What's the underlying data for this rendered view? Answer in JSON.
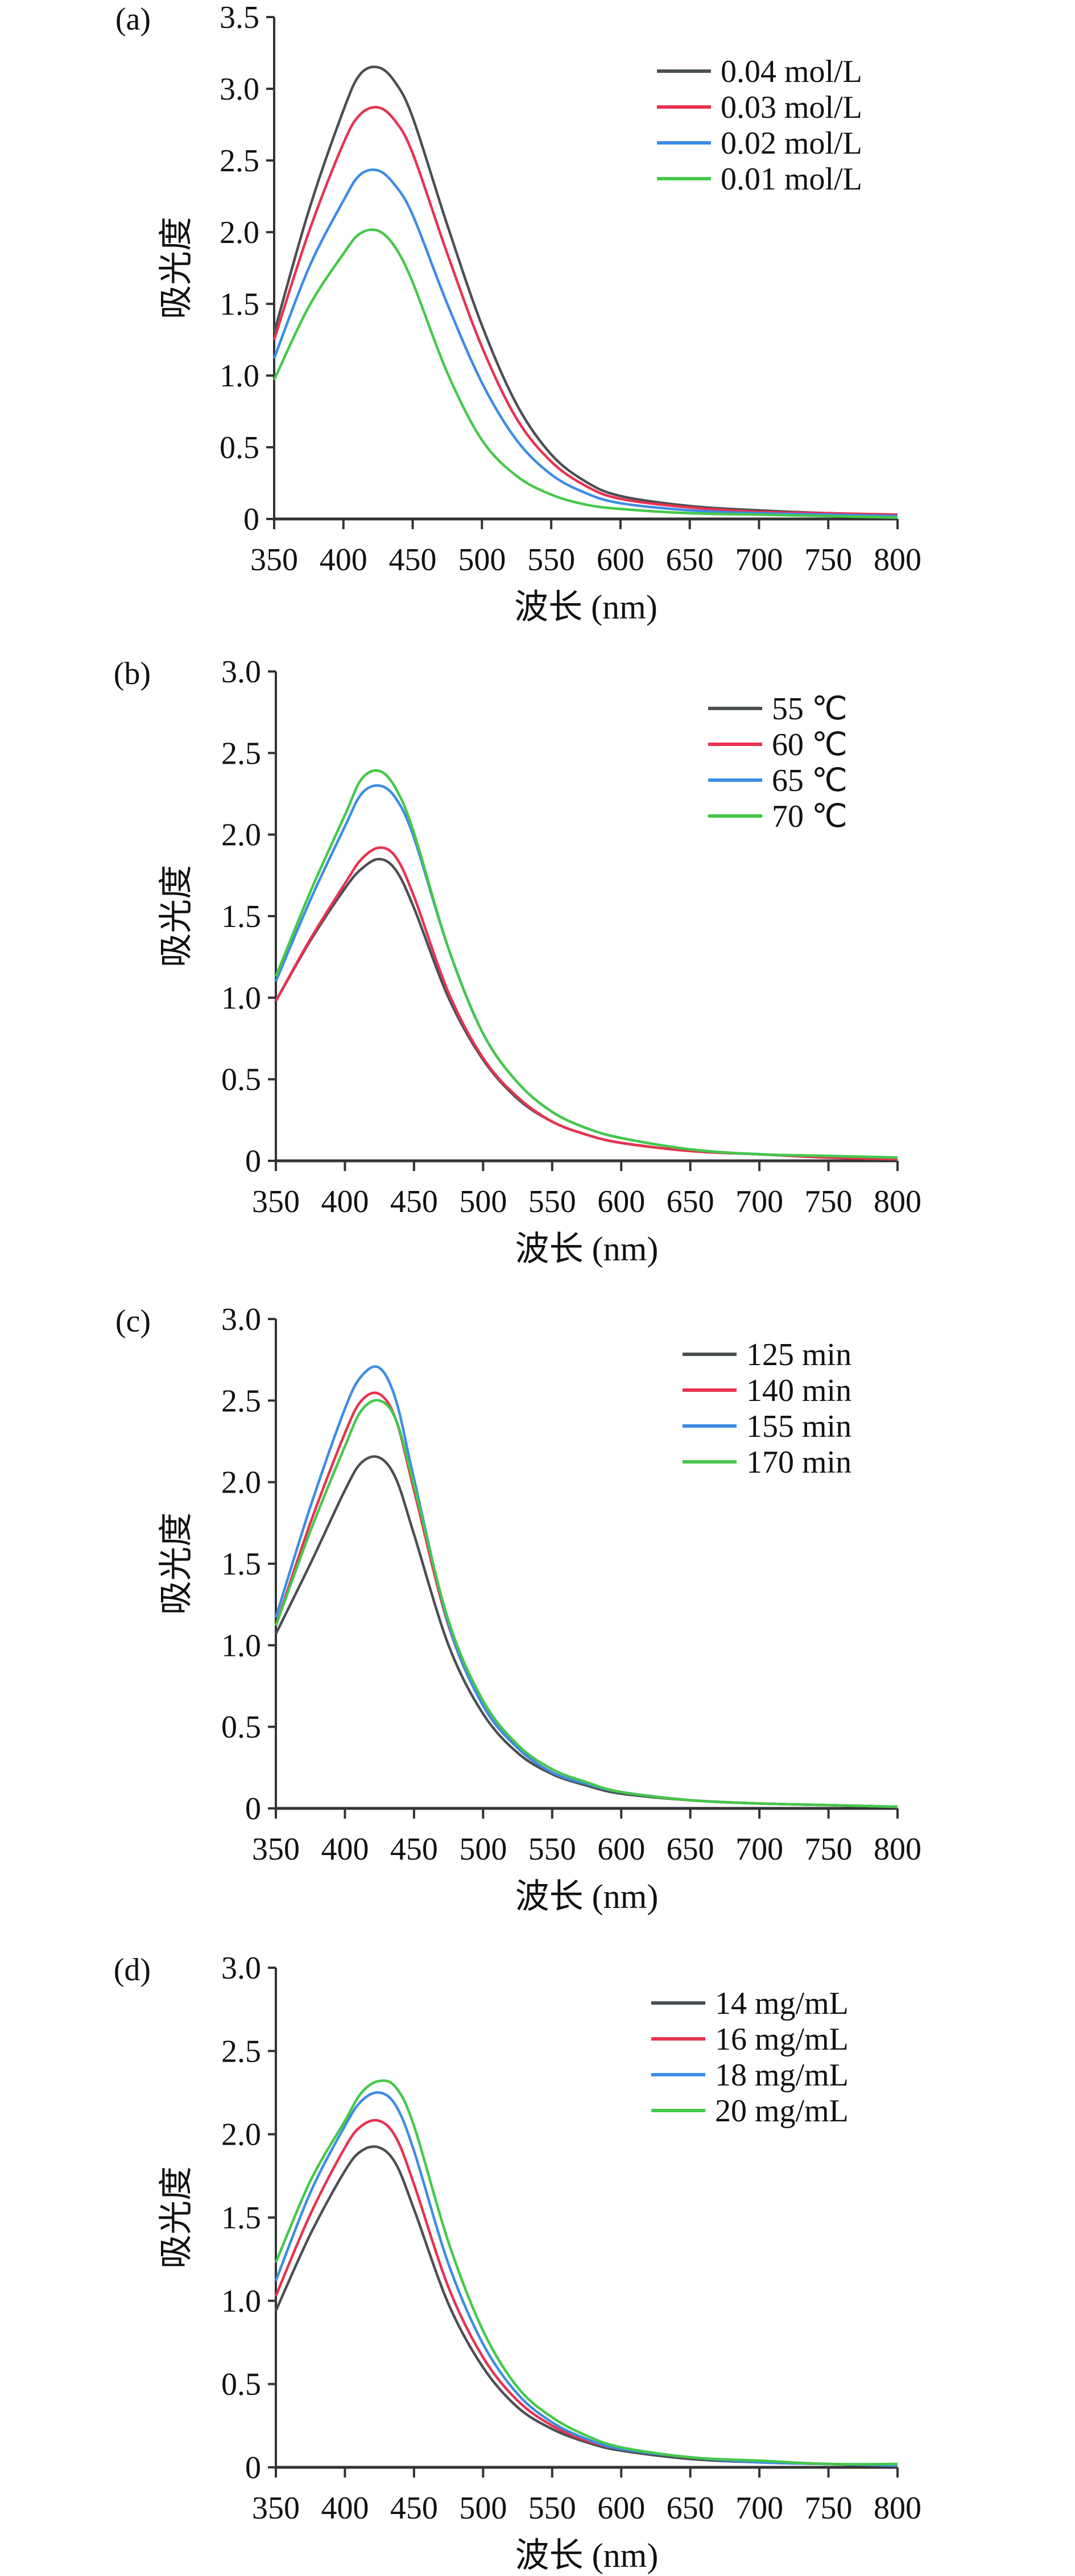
{
  "chart_data": [
    {
      "type": "line",
      "panel_label": "(a)",
      "xlabel": "波长 (nm)",
      "ylabel": "吸光度",
      "xlim": [
        350,
        800
      ],
      "ylim": [
        0,
        3.5
      ],
      "x_ticks": [
        "350",
        "400",
        "450",
        "500",
        "550",
        "600",
        "650",
        "700",
        "750",
        "800"
      ],
      "y_ticks": [
        "0",
        "0.5",
        "1.0",
        "1.5",
        "2.0",
        "2.5",
        "3.0",
        "3.5"
      ],
      "legend_position": "top-right",
      "grid": false,
      "x": [
        350,
        375,
        400,
        412,
        425,
        437,
        450,
        475,
        500,
        525,
        550,
        575,
        600,
        650,
        700,
        750,
        800
      ],
      "series": [
        {
          "name": "0.04 mol/L",
          "color": "#4a4f52",
          "values": [
            1.3,
            2.15,
            2.85,
            3.1,
            3.15,
            3.05,
            2.8,
            2.05,
            1.35,
            0.8,
            0.45,
            0.26,
            0.16,
            0.09,
            0.06,
            0.04,
            0.03
          ]
        },
        {
          "name": "0.03 mol/L",
          "color": "#e8324f",
          "values": [
            1.25,
            2.0,
            2.62,
            2.82,
            2.87,
            2.78,
            2.55,
            1.85,
            1.2,
            0.7,
            0.4,
            0.23,
            0.14,
            0.08,
            0.05,
            0.04,
            0.03
          ]
        },
        {
          "name": "0.02 mol/L",
          "color": "#3d8ce6",
          "values": [
            1.12,
            1.75,
            2.22,
            2.4,
            2.43,
            2.33,
            2.12,
            1.5,
            0.95,
            0.55,
            0.31,
            0.18,
            0.11,
            0.06,
            0.04,
            0.03,
            0.02
          ]
        },
        {
          "name": "0.01 mol/L",
          "color": "#45c84a",
          "values": [
            0.97,
            1.48,
            1.85,
            1.99,
            2.01,
            1.9,
            1.65,
            1.02,
            0.55,
            0.3,
            0.17,
            0.1,
            0.07,
            0.04,
            0.03,
            0.02,
            0.01
          ]
        }
      ]
    },
    {
      "type": "line",
      "panel_label": "(b)",
      "xlabel": "波长 (nm)",
      "ylabel": "吸光度",
      "xlim": [
        350,
        800
      ],
      "ylim": [
        0,
        3.0
      ],
      "x_ticks": [
        "350",
        "400",
        "450",
        "500",
        "550",
        "600",
        "650",
        "700",
        "750",
        "800"
      ],
      "y_ticks": [
        "0",
        "0.5",
        "1.0",
        "1.5",
        "2.0",
        "2.5",
        "3.0"
      ],
      "legend_position": "top-right",
      "grid": false,
      "x": [
        350,
        375,
        400,
        412,
        425,
        437,
        450,
        475,
        500,
        525,
        550,
        575,
        600,
        650,
        700,
        750,
        800
      ],
      "series": [
        {
          "name": "55 ℃",
          "color": "#4a4f52",
          "values": [
            0.98,
            1.35,
            1.67,
            1.79,
            1.85,
            1.78,
            1.55,
            1.0,
            0.62,
            0.38,
            0.24,
            0.16,
            0.11,
            0.06,
            0.04,
            0.02,
            0.01
          ]
        },
        {
          "name": "60 ℃",
          "color": "#e8324f",
          "values": [
            0.98,
            1.36,
            1.7,
            1.85,
            1.92,
            1.86,
            1.62,
            1.03,
            0.63,
            0.39,
            0.24,
            0.16,
            0.11,
            0.06,
            0.04,
            0.02,
            0.01
          ]
        },
        {
          "name": "65 ℃",
          "color": "#3d8ce6",
          "values": [
            1.1,
            1.6,
            2.05,
            2.25,
            2.3,
            2.22,
            1.98,
            1.3,
            0.78,
            0.48,
            0.3,
            0.2,
            0.14,
            0.07,
            0.04,
            0.03,
            0.02
          ]
        },
        {
          "name": "70 ℃",
          "color": "#45c84a",
          "values": [
            1.13,
            1.65,
            2.12,
            2.34,
            2.39,
            2.28,
            2.01,
            1.3,
            0.78,
            0.48,
            0.3,
            0.2,
            0.14,
            0.07,
            0.04,
            0.03,
            0.02
          ]
        }
      ]
    },
    {
      "type": "line",
      "panel_label": "(c)",
      "xlabel": "波长 (nm)",
      "ylabel": "吸光度",
      "xlim": [
        350,
        800
      ],
      "ylim": [
        0,
        3.0
      ],
      "x_ticks": [
        "350",
        "400",
        "450",
        "500",
        "550",
        "600",
        "650",
        "700",
        "750",
        "800"
      ],
      "y_ticks": [
        "0",
        "0.5",
        "1.0",
        "1.5",
        "2.0",
        "2.5",
        "3.0"
      ],
      "legend_position": "top-right",
      "grid": false,
      "x": [
        350,
        375,
        400,
        412,
        425,
        437,
        450,
        475,
        500,
        525,
        550,
        575,
        600,
        650,
        700,
        750,
        800
      ],
      "series": [
        {
          "name": "125 min",
          "color": "#4a4f52",
          "values": [
            1.07,
            1.5,
            1.95,
            2.12,
            2.15,
            2.02,
            1.68,
            1.0,
            0.58,
            0.34,
            0.21,
            0.14,
            0.09,
            0.05,
            0.03,
            0.02,
            0.01
          ]
        },
        {
          "name": "140 min",
          "color": "#e8324f",
          "values": [
            1.12,
            1.75,
            2.3,
            2.5,
            2.54,
            2.38,
            1.95,
            1.12,
            0.63,
            0.37,
            0.22,
            0.15,
            0.1,
            0.05,
            0.03,
            0.02,
            0.01
          ]
        },
        {
          "name": "155 min",
          "color": "#3d8ce6",
          "values": [
            1.17,
            1.85,
            2.45,
            2.65,
            2.7,
            2.5,
            2.02,
            1.13,
            0.63,
            0.37,
            0.22,
            0.15,
            0.1,
            0.05,
            0.03,
            0.02,
            0.01
          ]
        },
        {
          "name": "170 min",
          "color": "#45c84a",
          "values": [
            1.12,
            1.7,
            2.22,
            2.44,
            2.5,
            2.38,
            1.98,
            1.15,
            0.66,
            0.39,
            0.24,
            0.16,
            0.1,
            0.05,
            0.03,
            0.02,
            0.01
          ]
        }
      ]
    },
    {
      "type": "line",
      "panel_label": "(d)",
      "xlabel": "波长 (nm)",
      "ylabel": "吸光度",
      "xlim": [
        350,
        800
      ],
      "ylim": [
        0,
        3.0
      ],
      "x_ticks": [
        "350",
        "400",
        "450",
        "500",
        "550",
        "600",
        "650",
        "700",
        "750",
        "800"
      ],
      "y_ticks": [
        "0",
        "0.5",
        "1.0",
        "1.5",
        "2.0",
        "2.5",
        "3.0"
      ],
      "legend_position": "top-right",
      "grid": false,
      "x": [
        350,
        375,
        400,
        412,
        425,
        437,
        450,
        475,
        500,
        525,
        550,
        575,
        600,
        650,
        700,
        750,
        800
      ],
      "series": [
        {
          "name": "14 mg/mL",
          "color": "#4a4f52",
          "values": [
            0.94,
            1.4,
            1.78,
            1.9,
            1.92,
            1.82,
            1.55,
            0.98,
            0.6,
            0.36,
            0.23,
            0.15,
            0.1,
            0.05,
            0.03,
            0.02,
            0.01
          ]
        },
        {
          "name": "16 mg/mL",
          "color": "#e8324f",
          "values": [
            1.03,
            1.52,
            1.92,
            2.05,
            2.08,
            1.98,
            1.7,
            1.08,
            0.66,
            0.4,
            0.25,
            0.16,
            0.11,
            0.06,
            0.03,
            0.02,
            0.01
          ]
        },
        {
          "name": "18 mg/mL",
          "color": "#3d8ce6",
          "values": [
            1.12,
            1.65,
            2.05,
            2.2,
            2.25,
            2.17,
            1.9,
            1.22,
            0.74,
            0.44,
            0.27,
            0.17,
            0.11,
            0.06,
            0.03,
            0.02,
            0.01
          ]
        },
        {
          "name": "20 mg/mL",
          "color": "#45c84a",
          "values": [
            1.23,
            1.72,
            2.08,
            2.25,
            2.32,
            2.28,
            2.05,
            1.35,
            0.82,
            0.48,
            0.3,
            0.19,
            0.12,
            0.06,
            0.04,
            0.02,
            0.02
          ]
        }
      ]
    }
  ]
}
